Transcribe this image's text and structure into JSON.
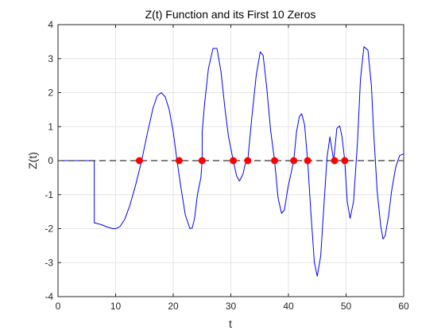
{
  "chart_data": {
    "type": "line",
    "title": "Z(t) Function and its First 10 Zeros",
    "xlabel": "t",
    "ylabel": "Z(t)",
    "xlim": [
      0,
      60
    ],
    "ylim": [
      -4,
      4
    ],
    "grid": true,
    "xticks": [
      0,
      10,
      20,
      30,
      40,
      50,
      60
    ],
    "yticks": [
      -4,
      -3,
      -2,
      -1,
      0,
      1,
      2,
      3,
      4
    ],
    "xtick_labels": [
      "0",
      "10",
      "20",
      "30",
      "40",
      "50",
      "60"
    ],
    "ytick_labels": [
      "-4",
      "-3",
      "-2",
      "-1",
      "0",
      "1",
      "2",
      "3",
      "4"
    ],
    "colors": {
      "curve": "#0000ff",
      "zeros": "#ff0000",
      "zero_line": "#000000",
      "grid": "#e6e6e6",
      "axes": "#262626"
    },
    "series": [
      {
        "style": "solid",
        "x": [
          0,
          6.29,
          6.3,
          7.5,
          8.5,
          9.5,
          10.1,
          10.8,
          11.6,
          12.5,
          13.5,
          14.52,
          15.5,
          16.5,
          17.2,
          17.9,
          18.6,
          19.3,
          20.0,
          20.66,
          21.3,
          22.1,
          22.9,
          23.3,
          23.7,
          24.2,
          24.8,
          25.02,
          25.03,
          25.4,
          26.1,
          26.9,
          27.6,
          28.3,
          29.0,
          29.6,
          30.42,
          31.0,
          31.5,
          32.1,
          32.5,
          32.94,
          33.6,
          34.4,
          35.1,
          35.6,
          36.2,
          36.9,
          37.59,
          38.2,
          38.8,
          39.3,
          39.9,
          40.92,
          41.4,
          41.9,
          42.3,
          42.8,
          43.33,
          43.9,
          44.5,
          45.0,
          45.6,
          46.2,
          46.7,
          47.2,
          47.85,
          48.4,
          48.9,
          49.3,
          49.77,
          50.2,
          50.7,
          51.3,
          52.0,
          52.5,
          53.1,
          53.8,
          54.4,
          54.8,
          55.4,
          56.0,
          56.4,
          56.45,
          56.8,
          57.4,
          57.9,
          58.6,
          59.3,
          60.0
        ],
        "values": [
          0,
          0,
          -1.83,
          -1.88,
          -1.95,
          -2.0,
          -2.0,
          -1.93,
          -1.72,
          -1.3,
          -0.7,
          0,
          0.8,
          1.55,
          1.9,
          2.0,
          1.88,
          1.5,
          0.85,
          0,
          -0.75,
          -1.6,
          -2.0,
          -1.98,
          -1.7,
          -1.0,
          -0.5,
          0,
          0.85,
          1.6,
          2.7,
          3.3,
          3.3,
          2.6,
          1.5,
          0.7,
          0,
          -0.45,
          -0.6,
          -0.4,
          -0.1,
          0,
          1.2,
          2.5,
          3.2,
          3.1,
          2.2,
          0.9,
          0,
          -1.1,
          -1.55,
          -1.45,
          -0.8,
          0,
          0.85,
          1.3,
          1.38,
          1.05,
          0,
          -1.55,
          -3.0,
          -3.4,
          -2.8,
          -1.2,
          0.1,
          0.7,
          0,
          0.95,
          1.02,
          0.7,
          0,
          -1.2,
          -1.7,
          -1.2,
          0.6,
          2.4,
          3.35,
          3.25,
          2.2,
          0.8,
          -0.9,
          -1.9,
          -2.3,
          -2.3,
          -2.2,
          -1.6,
          -0.9,
          -0.2,
          0.15,
          0.2
        ]
      },
      {
        "style": "dashed",
        "x": [
          0,
          60
        ],
        "values": [
          0,
          0
        ]
      },
      {
        "style": "markers",
        "x": [
          14.13,
          21.02,
          25.01,
          30.42,
          32.94,
          37.59,
          40.92,
          43.33,
          48.01,
          49.77
        ],
        "values": [
          0,
          0,
          0,
          0,
          0,
          0,
          0,
          0,
          0,
          0
        ]
      }
    ]
  }
}
